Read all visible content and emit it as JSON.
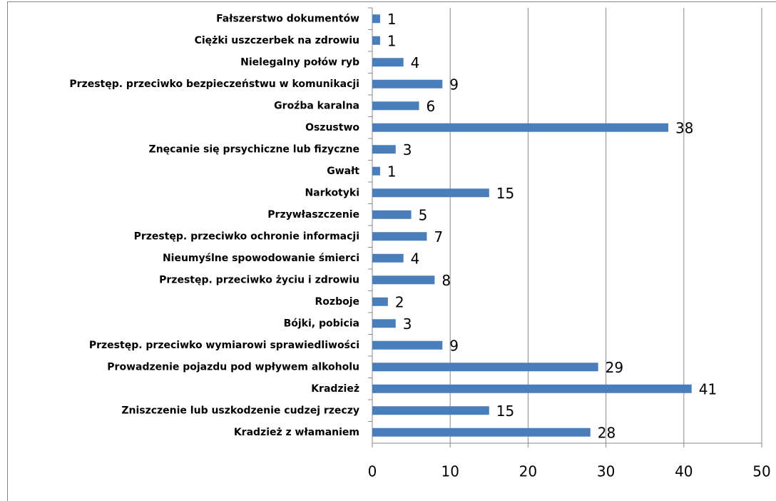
{
  "chart_data": {
    "type": "bar",
    "orientation": "horizontal",
    "categories": [
      "Fałszerstwo dokumentów",
      "Ciężki uszczerbek na zdrowiu",
      "Nielegalny połów ryb",
      "Przestęp. przeciwko bezpieczeństwu w komunikacji",
      "Groźba karalna",
      "Oszustwo",
      "Znęcanie się prsychiczne lub fizyczne",
      "Gwałt",
      "Narkotyki",
      "Przywłaszczenie",
      "Przestęp. przeciwko ochronie informacji",
      "Nieumyślne spowodowanie śmierci",
      "Przestęp. przeciwko życiu i zdrowiu",
      "Rozboje",
      "Bójki, pobicia",
      "Przestęp. przeciwko wymiarowi sprawiedliwości",
      "Prowadzenie pojazdu pod wpływem alkoholu",
      "Kradzież",
      "Zniszczenie lub uszkodzenie cudzej rzeczy",
      "Kradzież z włamaniem"
    ],
    "values": [
      1,
      1,
      4,
      9,
      6,
      38,
      3,
      1,
      15,
      5,
      7,
      4,
      8,
      2,
      3,
      9,
      29,
      41,
      15,
      28
    ],
    "color": "#4a7ebb",
    "xlim": [
      0,
      50
    ],
    "xticks": [
      0,
      10,
      20,
      30,
      40,
      50
    ],
    "grid": true
  }
}
